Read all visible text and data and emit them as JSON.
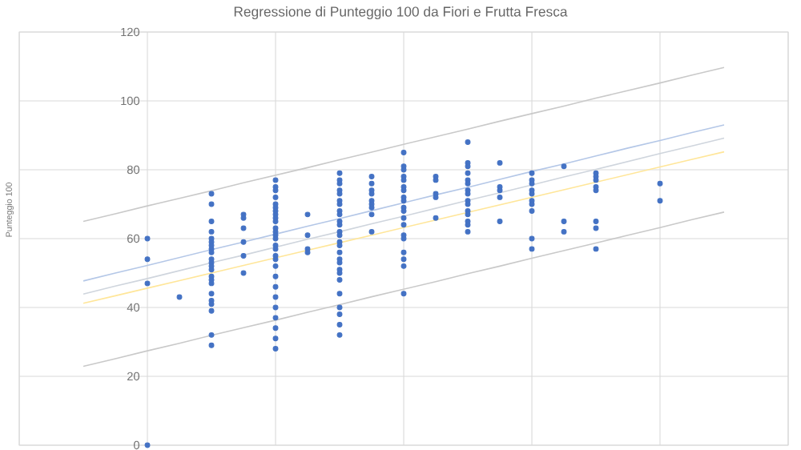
{
  "chart_data": {
    "type": "scatter",
    "title": "Regressione di Punteggio 100 da Fiori e Frutta Fresca",
    "ylabel": "Punteggio 100",
    "categories": [
      null,
      null,
      null,
      null,
      null,
      null,
      null,
      null,
      null,
      null,
      null,
      null,
      null,
      null,
      null,
      null,
      null,
      null,
      null,
      null,
      null,
      null,
      null,
      null,
      null
    ],
    "ylim": [
      0,
      120
    ],
    "yticks": [
      0,
      20,
      40,
      60,
      80,
      100,
      120
    ],
    "grid": true,
    "marker": "circle",
    "series": [
      {
        "color": "#4472c4",
        "values": [
          null,
          null,
          null,
          null,
          60,
          43,
          73,
          67,
          77,
          67,
          79,
          78,
          85,
          78,
          88,
          82,
          79,
          81,
          79,
          null,
          76,
          null,
          null,
          null,
          null
        ]
      },
      {
        "color": "#4472c4",
        "values": [
          null,
          null,
          null,
          null,
          54,
          null,
          70,
          66,
          75,
          61,
          77,
          76,
          81,
          77,
          82,
          75,
          77,
          65,
          78,
          null,
          71,
          null,
          null,
          null,
          null
        ]
      },
      {
        "color": "#4472c4",
        "values": [
          null,
          null,
          null,
          null,
          47,
          null,
          65,
          63,
          74,
          57,
          76,
          74,
          80,
          73,
          81,
          74,
          76,
          62,
          77,
          null,
          null,
          null,
          null,
          null,
          null
        ]
      },
      {
        "color": "#4472c4",
        "values": [
          null,
          null,
          null,
          null,
          0,
          null,
          62,
          59,
          72,
          56,
          74,
          73,
          78,
          72,
          79,
          72,
          74,
          null,
          75,
          null,
          null,
          null,
          null,
          null,
          null
        ]
      },
      {
        "color": "#4472c4",
        "values": [
          null,
          null,
          null,
          null,
          null,
          null,
          60,
          55,
          70,
          null,
          73,
          71,
          77,
          66,
          77,
          65,
          73,
          null,
          74,
          null,
          null,
          null,
          null,
          null,
          null
        ]
      },
      {
        "color": "#4472c4",
        "values": [
          null,
          null,
          null,
          null,
          null,
          null,
          59,
          50,
          69,
          null,
          71,
          70,
          75,
          null,
          76,
          null,
          71,
          null,
          65,
          null,
          null,
          null,
          null,
          null,
          null
        ]
      },
      {
        "color": "#4472c4",
        "values": [
          null,
          null,
          null,
          null,
          null,
          null,
          58,
          null,
          68,
          null,
          70,
          69,
          74,
          null,
          74,
          null,
          70,
          null,
          63,
          null,
          null,
          null,
          null,
          null,
          null
        ]
      },
      {
        "color": "#4472c4",
        "values": [
          null,
          null,
          null,
          null,
          null,
          null,
          57,
          null,
          67,
          null,
          68,
          67,
          72,
          null,
          73,
          null,
          68,
          null,
          57,
          null,
          null,
          null,
          null,
          null,
          null
        ]
      },
      {
        "color": "#4472c4",
        "values": [
          null,
          null,
          null,
          null,
          null,
          null,
          56,
          null,
          66,
          null,
          67,
          62,
          71,
          null,
          71,
          null,
          60,
          null,
          null,
          null,
          null,
          null,
          null,
          null,
          null
        ]
      },
      {
        "color": "#4472c4",
        "values": [
          null,
          null,
          null,
          null,
          null,
          null,
          54,
          null,
          65,
          null,
          65,
          null,
          69,
          null,
          70,
          null,
          57,
          null,
          null,
          null,
          null,
          null,
          null,
          null,
          null
        ]
      },
      {
        "color": "#4472c4",
        "values": [
          null,
          null,
          null,
          null,
          null,
          null,
          53,
          null,
          63,
          null,
          64,
          null,
          68,
          null,
          68,
          null,
          null,
          null,
          null,
          null,
          null,
          null,
          null,
          null,
          null
        ]
      },
      {
        "color": "#4472c4",
        "values": [
          null,
          null,
          null,
          null,
          null,
          null,
          52,
          null,
          62,
          null,
          62,
          null,
          66,
          null,
          67,
          null,
          null,
          null,
          null,
          null,
          null,
          null,
          null,
          null,
          null
        ]
      },
      {
        "color": "#4472c4",
        "values": [
          null,
          null,
          null,
          null,
          null,
          null,
          51,
          null,
          61,
          null,
          61,
          null,
          64,
          null,
          65,
          null,
          null,
          null,
          null,
          null,
          null,
          null,
          null,
          null,
          null
        ]
      },
      {
        "color": "#4472c4",
        "values": [
          null,
          null,
          null,
          null,
          null,
          null,
          49,
          null,
          60,
          null,
          59,
          null,
          61,
          null,
          64,
          null,
          null,
          null,
          null,
          null,
          null,
          null,
          null,
          null,
          null
        ]
      },
      {
        "color": "#4472c4",
        "values": [
          null,
          null,
          null,
          null,
          null,
          null,
          48,
          null,
          58,
          null,
          58,
          null,
          60,
          null,
          62,
          null,
          null,
          null,
          null,
          null,
          null,
          null,
          null,
          null,
          null
        ]
      },
      {
        "color": "#4472c4",
        "values": [
          null,
          null,
          null,
          null,
          null,
          null,
          47,
          null,
          57,
          null,
          56,
          null,
          56,
          null,
          null,
          null,
          null,
          null,
          null,
          null,
          null,
          null,
          null,
          null,
          null
        ]
      },
      {
        "color": "#4472c4",
        "values": [
          null,
          null,
          null,
          null,
          null,
          null,
          44,
          null,
          55,
          null,
          54,
          null,
          54,
          null,
          null,
          null,
          null,
          null,
          null,
          null,
          null,
          null,
          null,
          null,
          null
        ]
      },
      {
        "color": "#4472c4",
        "values": [
          null,
          null,
          null,
          null,
          null,
          null,
          42,
          null,
          54,
          null,
          53,
          null,
          52,
          null,
          null,
          null,
          null,
          null,
          null,
          null,
          null,
          null,
          null,
          null,
          null
        ]
      },
      {
        "color": "#4472c4",
        "values": [
          null,
          null,
          null,
          null,
          null,
          null,
          41,
          null,
          52,
          null,
          51,
          null,
          44,
          null,
          null,
          null,
          null,
          null,
          null,
          null,
          null,
          null,
          null,
          null,
          null
        ]
      },
      {
        "color": "#4472c4",
        "values": [
          null,
          null,
          null,
          null,
          null,
          null,
          39,
          null,
          49,
          null,
          50,
          null,
          null,
          null,
          null,
          null,
          null,
          null,
          null,
          null,
          null,
          null,
          null,
          null,
          null
        ]
      },
      {
        "color": "#4472c4",
        "values": [
          null,
          null,
          null,
          null,
          null,
          null,
          32,
          null,
          46,
          null,
          48,
          null,
          null,
          null,
          null,
          null,
          null,
          null,
          null,
          null,
          null,
          null,
          null,
          null,
          null
        ]
      },
      {
        "color": "#4472c4",
        "values": [
          null,
          null,
          null,
          null,
          null,
          null,
          29,
          null,
          43,
          null,
          44,
          null,
          null,
          null,
          null,
          null,
          null,
          null,
          null,
          null,
          null,
          null,
          null,
          null,
          null
        ]
      },
      {
        "color": "#4472c4",
        "values": [
          null,
          null,
          null,
          null,
          null,
          null,
          null,
          null,
          40,
          null,
          40,
          null,
          null,
          null,
          null,
          null,
          null,
          null,
          null,
          null,
          null,
          null,
          null,
          null,
          null
        ]
      },
      {
        "color": "#4472c4",
        "values": [
          null,
          null,
          null,
          null,
          null,
          null,
          null,
          null,
          37,
          null,
          38,
          null,
          null,
          null,
          null,
          null,
          null,
          null,
          null,
          null,
          null,
          null,
          null,
          null,
          null
        ]
      },
      {
        "color": "#4472c4",
        "values": [
          null,
          null,
          null,
          null,
          null,
          null,
          null,
          null,
          34,
          null,
          35,
          null,
          null,
          null,
          null,
          null,
          null,
          null,
          null,
          null,
          null,
          null,
          null,
          null,
          null
        ]
      },
      {
        "color": "#4472c4",
        "values": [
          null,
          null,
          null,
          null,
          null,
          null,
          null,
          null,
          31,
          null,
          32,
          null,
          null,
          null,
          null,
          null,
          null,
          null,
          null,
          null,
          null,
          null,
          null,
          null,
          null
        ]
      },
      {
        "color": "#4472c4",
        "values": [
          null,
          null,
          null,
          null,
          null,
          null,
          null,
          null,
          28,
          null,
          null,
          null,
          null,
          null,
          null,
          null,
          null,
          null,
          null,
          null,
          null,
          null,
          null,
          null,
          null
        ]
      },
      {
        "type": "line",
        "marker": "none",
        "color": "#c9c9c9",
        "values": [
          null,
          null,
          65.0,
          67.2,
          69.5,
          71.7,
          73.9,
          76.2,
          78.4,
          80.6,
          82.9,
          85.1,
          87.4,
          89.6,
          91.8,
          94.1,
          96.3,
          98.5,
          100.8,
          103.0,
          105.2,
          107.5,
          109.7,
          null,
          null
        ]
      },
      {
        "type": "line",
        "marker": "none",
        "color": "#b4c7e7",
        "values": [
          null,
          null,
          47.7,
          50.0,
          52.2,
          54.5,
          56.8,
          59.0,
          61.3,
          63.6,
          65.8,
          68.1,
          70.4,
          72.7,
          74.9,
          77.2,
          79.5,
          81.7,
          84.0,
          86.3,
          88.5,
          90.8,
          93.0,
          null,
          null
        ]
      },
      {
        "type": "line",
        "marker": "none",
        "color": "#cfd5dd",
        "values": [
          null,
          null,
          43.9,
          46.2,
          48.4,
          50.7,
          53.0,
          55.2,
          57.5,
          59.8,
          62.0,
          64.3,
          66.5,
          68.8,
          71.1,
          73.3,
          75.6,
          77.9,
          80.1,
          82.4,
          84.7,
          86.9,
          89.2,
          null,
          null
        ]
      },
      {
        "type": "line",
        "marker": "none",
        "color": "#ffe699",
        "values": [
          null,
          null,
          41.2,
          43.4,
          45.6,
          47.8,
          50.0,
          52.2,
          54.4,
          56.6,
          58.8,
          61.0,
          63.2,
          65.4,
          67.6,
          69.8,
          72.0,
          74.2,
          76.4,
          78.6,
          80.8,
          83.0,
          85.2,
          null,
          null
        ]
      },
      {
        "type": "line",
        "marker": "none",
        "color": "#c9c9c9",
        "values": [
          null,
          null,
          22.9,
          25.1,
          27.4,
          29.6,
          31.9,
          34.1,
          36.3,
          38.6,
          40.8,
          43.1,
          45.3,
          47.5,
          49.8,
          52.0,
          54.3,
          56.5,
          58.7,
          61.0,
          63.2,
          65.5,
          67.7,
          null,
          null
        ]
      }
    ]
  }
}
